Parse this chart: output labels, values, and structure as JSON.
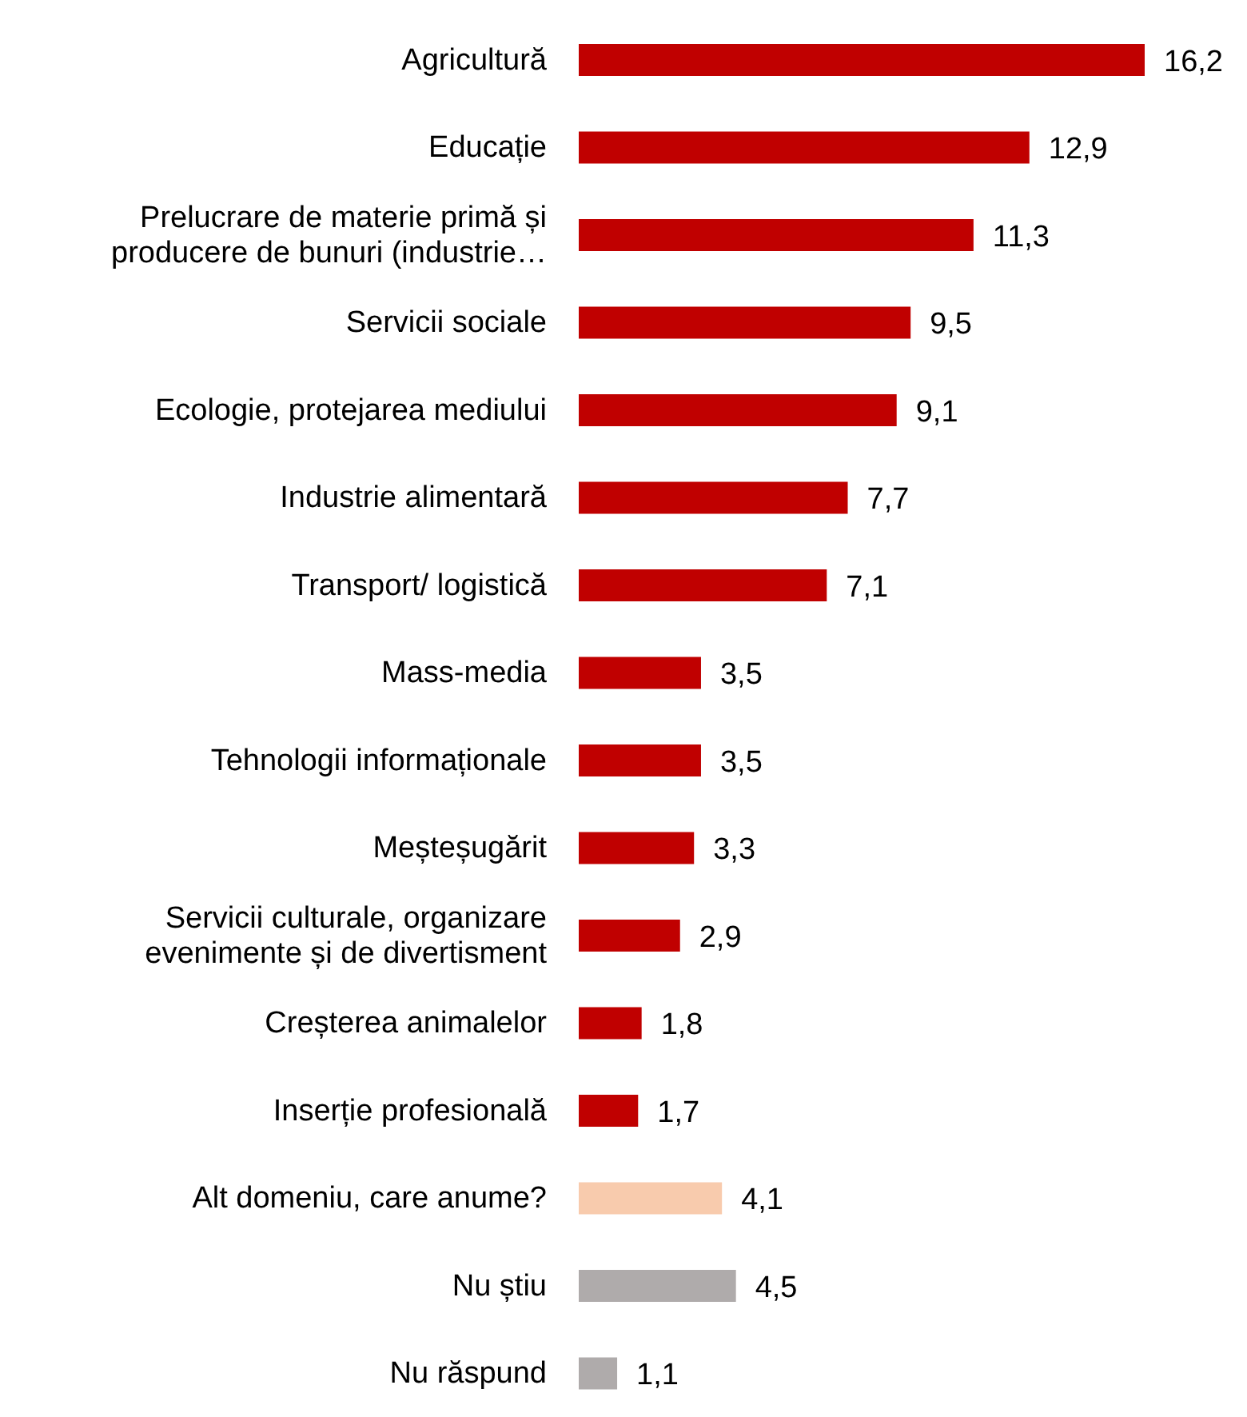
{
  "chart_data": {
    "type": "bar",
    "orientation": "horizontal",
    "tick_labels": "y",
    "categories": [
      "Agricultură",
      "Educație",
      "Prelucrare de materie primă și producere de bunuri (industrie…",
      "Servicii sociale",
      "Ecologie, protejarea mediului",
      "Industrie alimentară",
      "Transport/ logistică",
      "Mass-media",
      "Tehnologii informaționale",
      "Meșteșugărit",
      "Servicii culturale, organizare evenimente și de divertisment",
      "Creșterea animalelor",
      "Inserție profesională",
      "Alt domeniu, care anume?",
      "Nu știu",
      "Nu răspund"
    ],
    "values": [
      16.2,
      12.9,
      11.3,
      9.5,
      9.1,
      7.7,
      7.1,
      3.5,
      3.5,
      3.3,
      2.9,
      1.8,
      1.7,
      4.1,
      4.5,
      1.1
    ],
    "colors": [
      "#c00000",
      "#c00000",
      "#c00000",
      "#c00000",
      "#c00000",
      "#c00000",
      "#c00000",
      "#c00000",
      "#c00000",
      "#c00000",
      "#c00000",
      "#c00000",
      "#c00000",
      "#f8cbad",
      "#afabab",
      "#afabab"
    ],
    "value_labels": [
      "16,2",
      "12,9",
      "11,3",
      "9,5",
      "9,1",
      "7,7",
      "7,1",
      "3,5",
      "3,5",
      "3,3",
      "2,9",
      "1,8",
      "1,7",
      "4,1",
      "4,5",
      "1,1"
    ],
    "grid": false,
    "legend": false
  }
}
